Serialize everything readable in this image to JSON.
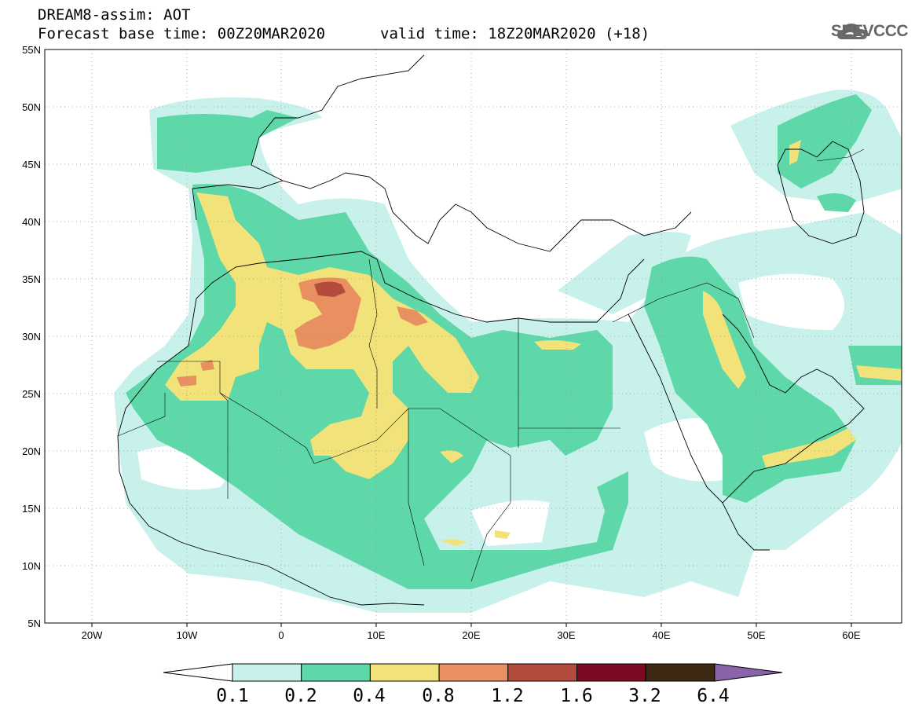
{
  "header": {
    "line1": "DREAM8-assim: AOT",
    "base_time": "Forecast base time: 00Z20MAR2020",
    "valid_time": "valid time: 18Z20MAR2020 (+18)"
  },
  "logo": {
    "text": "SEEVCCC",
    "icon": "cloud-logo-icon"
  },
  "map": {
    "lat_labels": [
      "55N",
      "50N",
      "45N",
      "40N",
      "35N",
      "30N",
      "25N",
      "20N",
      "15N",
      "10N",
      "5N"
    ],
    "lon_labels": [
      "20W",
      "10W",
      "0",
      "10E",
      "20E",
      "30E",
      "40E",
      "50E",
      "60E"
    ],
    "lat_range": [
      5,
      55
    ],
    "lon_range": [
      -25,
      65
    ],
    "grid": "dotted"
  },
  "colorbar": {
    "labels": [
      "0.1",
      "0.2",
      "0.4",
      "0.8",
      "1.2",
      "1.6",
      "3.2",
      "6.4"
    ],
    "colors": [
      "#ffffff",
      "#c9f1ec",
      "#5ed8a8",
      "#f2e27a",
      "#e8905f",
      "#b34c3c",
      "#7b0a22",
      "#3d2814",
      "#8a64a8"
    ]
  }
}
